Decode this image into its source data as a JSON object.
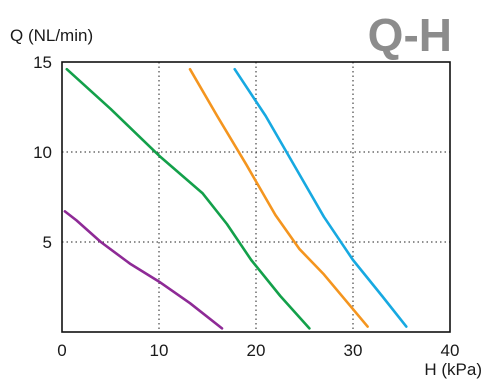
{
  "chart_data": {
    "type": "line",
    "title": "Q-H",
    "xlabel": "H (kPa)",
    "ylabel": "Q (NL/min)",
    "xlim": [
      0,
      40
    ],
    "ylim": [
      0,
      15
    ],
    "x_ticks": [
      "0",
      "10",
      "20",
      "30",
      "40"
    ],
    "y_ticks": [
      "5",
      "10",
      "15"
    ],
    "grid": true,
    "series": [
      {
        "color": "#8e2a96",
        "points": [
          [
            0.3,
            6.7
          ],
          [
            1.5,
            6.2
          ],
          [
            4,
            5
          ],
          [
            7,
            3.8
          ],
          [
            10,
            2.8
          ],
          [
            13.2,
            1.6
          ],
          [
            16.5,
            0.2
          ]
        ]
      },
      {
        "color": "#13a04a",
        "points": [
          [
            0.5,
            14.6
          ],
          [
            5,
            12.4
          ],
          [
            10,
            9.8
          ],
          [
            14.5,
            7.7
          ],
          [
            17,
            6
          ],
          [
            19.5,
            4
          ],
          [
            22.5,
            2
          ],
          [
            25.5,
            0.2
          ]
        ]
      },
      {
        "color": "#f4951f",
        "points": [
          [
            13.2,
            14.6
          ],
          [
            16,
            12
          ],
          [
            19,
            9.3
          ],
          [
            22,
            6.5
          ],
          [
            24.5,
            4.6
          ],
          [
            27,
            3.2
          ],
          [
            31.5,
            0.3
          ]
        ]
      },
      {
        "color": "#17a9e1",
        "points": [
          [
            17.8,
            14.6
          ],
          [
            21,
            12
          ],
          [
            24,
            9.2
          ],
          [
            27,
            6.4
          ],
          [
            30,
            4
          ],
          [
            33,
            2
          ],
          [
            35.5,
            0.3
          ]
        ]
      }
    ]
  }
}
